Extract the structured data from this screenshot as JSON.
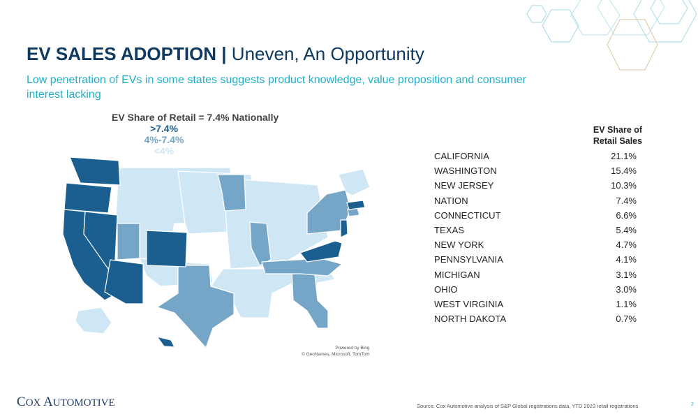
{
  "slide": {
    "title_bold": "EV SALES ADOPTION |",
    "title_rest": " Uneven, An Opportunity",
    "subtitle": "Low penetration of EVs in some states suggests product knowledge, value proposition and consumer interest lacking"
  },
  "legend": {
    "title": "EV Share of Retail = 7.4% Nationally",
    "items": [
      {
        "label": ">7.4%",
        "color": "#1a5f8f"
      },
      {
        "label": "4%-7.4%",
        "color": "#76a6c7"
      },
      {
        "label": "<4%",
        "color": "#cfe6f4"
      }
    ]
  },
  "map": {
    "credit_line1": "Powered by Bing",
    "credit_line2": "© GeoNames, Microsoft, TomTom"
  },
  "table": {
    "header_line1": "EV Share of",
    "header_line2": "Retail Sales",
    "rows": [
      {
        "state": "CALIFORNIA",
        "pct": "21.1%"
      },
      {
        "state": "WASHINGTON",
        "pct": "15.4%"
      },
      {
        "state": "NEW JERSEY",
        "pct": "10.3%"
      },
      {
        "state": "NATION",
        "pct": "7.4%"
      },
      {
        "state": "CONNECTICUT",
        "pct": "6.6%"
      },
      {
        "state": "TEXAS",
        "pct": "5.4%"
      },
      {
        "state": "NEW YORK",
        "pct": "4.7%"
      },
      {
        "state": "PENNSYLVANIA",
        "pct": "4.1%"
      },
      {
        "state": "MICHIGAN",
        "pct": "3.1%"
      },
      {
        "state": "OHIO",
        "pct": "3.0%"
      },
      {
        "state": "WEST VIRGINIA",
        "pct": "1.1%"
      },
      {
        "state": "NORTH DAKOTA",
        "pct": "0.7%"
      }
    ]
  },
  "footer": {
    "logo_big1": "C",
    "logo_small1": "OX",
    "logo_big2": " A",
    "logo_small2": "UTOMOTIVE",
    "source": "Source: Cox Automotive analysis of S&P Global registrations data, YTD 2023 retail registrations",
    "page_number": "2"
  }
}
